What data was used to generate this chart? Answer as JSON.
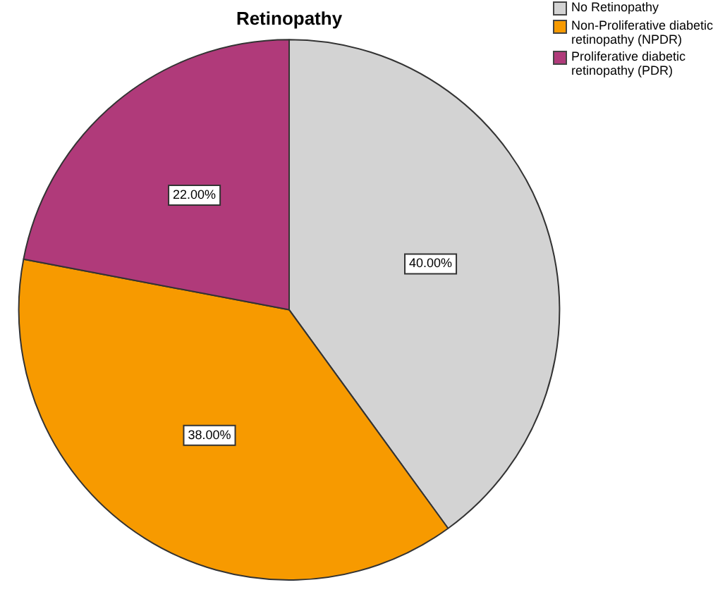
{
  "chart_data": {
    "type": "pie",
    "title": "Retinopathy",
    "categories": [
      "No Retinopathy",
      "Non-Proliferative diabetic retinopathy (NPDR)",
      "Proliferative diabetic retinopathy (PDR)"
    ],
    "values": [
      40,
      38,
      22
    ],
    "colors": [
      "#d3d3d3",
      "#f79a00",
      "#b03a7a"
    ],
    "value_labels": [
      "40.00%",
      "38.00%",
      "22.00%"
    ],
    "legend": "top right"
  }
}
